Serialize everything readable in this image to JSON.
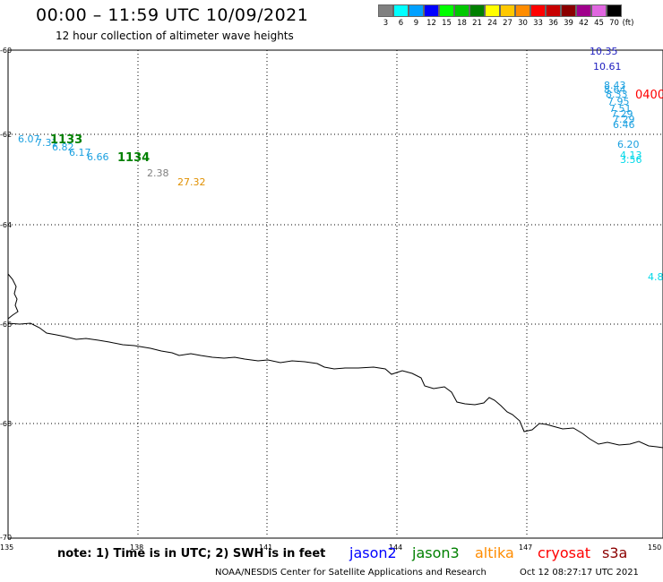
{
  "header": {
    "title": "00:00 – 11:59 UTC 10/09/2021",
    "subtitle": "12 hour collection of altimeter wave heights"
  },
  "color_scale": {
    "unit": "(ft)",
    "entries": [
      {
        "label": "3",
        "color": "#808080"
      },
      {
        "label": "6",
        "color": "#00ffff"
      },
      {
        "label": "9",
        "color": "#00a0ff"
      },
      {
        "label": "12",
        "color": "#0000ff"
      },
      {
        "label": "15",
        "color": "#00ff00"
      },
      {
        "label": "18",
        "color": "#00c800"
      },
      {
        "label": "21",
        "color": "#008000"
      },
      {
        "label": "24",
        "color": "#ffff00"
      },
      {
        "label": "27",
        "color": "#ffc800"
      },
      {
        "label": "30",
        "color": "#ff8c00"
      },
      {
        "label": "33",
        "color": "#ff0000"
      },
      {
        "label": "36",
        "color": "#c80000"
      },
      {
        "label": "39",
        "color": "#8b0000"
      },
      {
        "label": "42",
        "color": "#a0008c"
      },
      {
        "label": "45",
        "color": "#e066e0"
      },
      {
        "label": "70",
        "color": "#000000"
      }
    ]
  },
  "map": {
    "lat_labels": [
      "-60",
      "-62",
      "-64",
      "-66",
      "-68",
      "-70"
    ],
    "lon_labels": [
      "135",
      "138",
      "141",
      "144",
      "147",
      "150"
    ],
    "observations": [
      {
        "text": "10.35",
        "color": "#2020c0"
      },
      {
        "text": "10.61",
        "color": "#2020c0"
      },
      {
        "text": "8.43",
        "color": "#1aa0e0"
      },
      {
        "text": "8.64",
        "color": "#1aa0e0"
      },
      {
        "text": "8.33",
        "color": "#1aa0e0"
      },
      {
        "text": "7.95",
        "color": "#1aa0e0"
      },
      {
        "text": "7.51",
        "color": "#1aa0e0"
      },
      {
        "text": "7.29",
        "color": "#1aa0e0"
      },
      {
        "text": "7.29",
        "color": "#1aa0e0"
      },
      {
        "text": "6.46",
        "color": "#1aa0e0"
      },
      {
        "text": "6.20",
        "color": "#1aa0e0"
      },
      {
        "text": "4.13",
        "color": "#00d8e8"
      },
      {
        "text": "3.56",
        "color": "#00d8e8"
      },
      {
        "text": "4.8",
        "color": "#00d8e8"
      },
      {
        "text": "0400",
        "color": "#ff0000"
      },
      {
        "text": "6.07",
        "color": "#1aa0e0"
      },
      {
        "text": "7.31",
        "color": "#1aa0e0"
      },
      {
        "text": "6.82",
        "color": "#1aa0e0"
      },
      {
        "text": "6.17",
        "color": "#1aa0e0"
      },
      {
        "text": "6.66",
        "color": "#1aa0e0"
      },
      {
        "text": "1133",
        "color": "#008000"
      },
      {
        "text": "1134",
        "color": "#008000"
      },
      {
        "text": "2.38",
        "color": "#808080"
      },
      {
        "text": "27.32",
        "color": "#e09000"
      }
    ]
  },
  "footer": {
    "note": "note: 1) Time is in UTC; 2) SWH is in feet",
    "satellites": [
      {
        "name": "jason2",
        "color": "#0000ff"
      },
      {
        "name": "jason3",
        "color": "#008000"
      },
      {
        "name": "altika",
        "color": "#ff8c00"
      },
      {
        "name": "cryosat",
        "color": "#ff0000"
      },
      {
        "name": "s3a",
        "color": "#8b0000"
      }
    ],
    "credit": "NOAA/NESDIS Center for Satellite Applications and Research",
    "timestamp": "Oct 12 08:27:17 UTC 2021"
  }
}
